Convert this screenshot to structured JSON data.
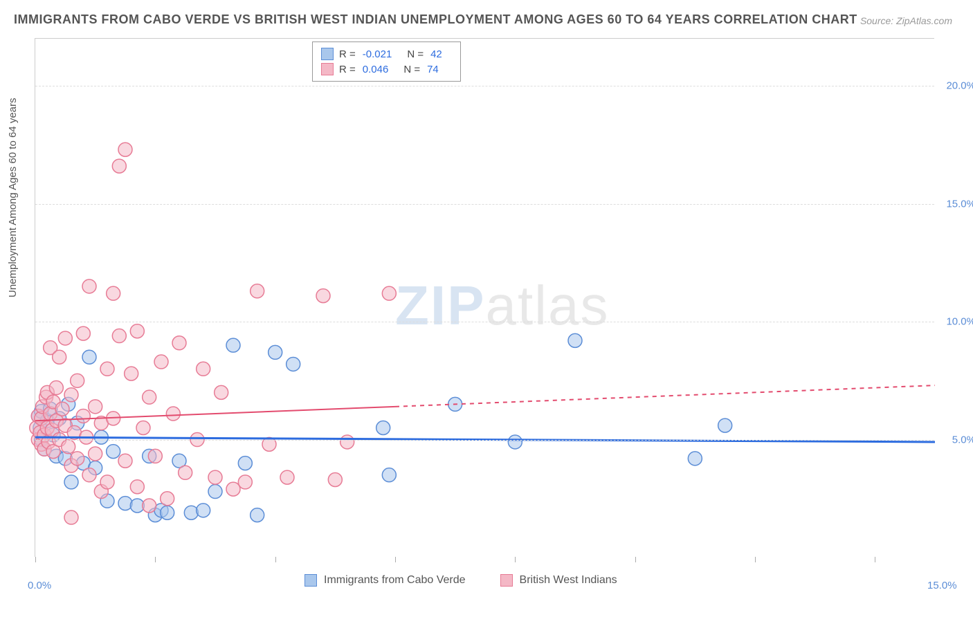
{
  "title": "IMMIGRANTS FROM CABO VERDE VS BRITISH WEST INDIAN UNEMPLOYMENT AMONG AGES 60 TO 64 YEARS CORRELATION CHART",
  "source": "Source: ZipAtlas.com",
  "watermark_a": "ZIP",
  "watermark_b": "atlas",
  "chart": {
    "type": "scatter",
    "ylabel": "Unemployment Among Ages 60 to 64 years",
    "background_color": "#ffffff",
    "grid_color": "#dddddd",
    "xlim": [
      0,
      15
    ],
    "ylim": [
      0,
      22
    ],
    "xticks": [
      0,
      2,
      4,
      6,
      8,
      10,
      12,
      14
    ],
    "xtick_labels": [
      "0.0%",
      "",
      "",
      "",
      "",
      "",
      "",
      "15.0%"
    ],
    "yticks": [
      5,
      10,
      15,
      20
    ],
    "ytick_labels": [
      "5.0%",
      "10.0%",
      "15.0%",
      "20.0%"
    ],
    "marker_radius": 10,
    "marker_opacity": 0.55,
    "series": [
      {
        "name": "Immigrants from Cabo Verde",
        "R": "-0.021",
        "N": "42",
        "color_fill": "#a9c7ec",
        "color_stroke": "#5b8dd6",
        "trend": {
          "color": "#2d6cdf",
          "width": 3,
          "y_start": 5.1,
          "y_end": 4.9,
          "solid_to_x": 15
        },
        "points": [
          [
            0.05,
            6.0
          ],
          [
            0.08,
            5.5
          ],
          [
            0.1,
            5.0
          ],
          [
            0.1,
            6.2
          ],
          [
            0.15,
            4.6
          ],
          [
            0.2,
            5.8
          ],
          [
            0.25,
            6.3
          ],
          [
            0.3,
            5.2
          ],
          [
            0.35,
            4.3
          ],
          [
            0.4,
            5.9
          ],
          [
            0.5,
            4.2
          ],
          [
            0.55,
            6.5
          ],
          [
            0.6,
            3.2
          ],
          [
            0.7,
            5.7
          ],
          [
            0.8,
            4.0
          ],
          [
            0.9,
            8.5
          ],
          [
            1.0,
            3.8
          ],
          [
            1.1,
            5.1
          ],
          [
            1.2,
            2.4
          ],
          [
            1.3,
            4.5
          ],
          [
            1.5,
            2.3
          ],
          [
            1.7,
            2.2
          ],
          [
            1.9,
            4.3
          ],
          [
            2.0,
            1.8
          ],
          [
            2.1,
            2.0
          ],
          [
            2.2,
            1.9
          ],
          [
            2.4,
            4.1
          ],
          [
            2.6,
            1.9
          ],
          [
            2.8,
            2.0
          ],
          [
            3.0,
            2.8
          ],
          [
            3.3,
            9.0
          ],
          [
            3.5,
            4.0
          ],
          [
            3.7,
            1.8
          ],
          [
            4.0,
            8.7
          ],
          [
            4.3,
            8.2
          ],
          [
            5.8,
            5.5
          ],
          [
            5.9,
            3.5
          ],
          [
            7.0,
            6.5
          ],
          [
            8.0,
            4.9
          ],
          [
            9.0,
            9.2
          ],
          [
            11.0,
            4.2
          ],
          [
            11.5,
            5.6
          ]
        ]
      },
      {
        "name": "British West Indians",
        "R": "0.046",
        "N": "74",
        "color_fill": "#f4b8c6",
        "color_stroke": "#e77b95",
        "trend": {
          "color": "#e34b6e",
          "width": 2,
          "y_start": 5.8,
          "y_end": 7.3,
          "solid_to_x": 6
        },
        "points": [
          [
            0.02,
            5.5
          ],
          [
            0.05,
            5.0
          ],
          [
            0.05,
            6.0
          ],
          [
            0.08,
            5.3
          ],
          [
            0.1,
            4.8
          ],
          [
            0.1,
            5.9
          ],
          [
            0.12,
            6.4
          ],
          [
            0.15,
            5.2
          ],
          [
            0.15,
            4.6
          ],
          [
            0.18,
            6.8
          ],
          [
            0.2,
            5.5
          ],
          [
            0.2,
            7.0
          ],
          [
            0.22,
            4.9
          ],
          [
            0.25,
            6.1
          ],
          [
            0.25,
            8.9
          ],
          [
            0.28,
            5.4
          ],
          [
            0.3,
            4.5
          ],
          [
            0.3,
            6.6
          ],
          [
            0.35,
            5.8
          ],
          [
            0.35,
            7.2
          ],
          [
            0.4,
            5.0
          ],
          [
            0.4,
            8.5
          ],
          [
            0.45,
            6.3
          ],
          [
            0.5,
            5.6
          ],
          [
            0.5,
            9.3
          ],
          [
            0.55,
            4.7
          ],
          [
            0.6,
            6.9
          ],
          [
            0.6,
            3.9
          ],
          [
            0.65,
            5.3
          ],
          [
            0.7,
            7.5
          ],
          [
            0.7,
            4.2
          ],
          [
            0.8,
            6.0
          ],
          [
            0.8,
            9.5
          ],
          [
            0.85,
            5.1
          ],
          [
            0.9,
            3.5
          ],
          [
            0.9,
            11.5
          ],
          [
            1.0,
            6.4
          ],
          [
            1.0,
            4.4
          ],
          [
            1.1,
            5.7
          ],
          [
            1.1,
            2.8
          ],
          [
            1.2,
            8.0
          ],
          [
            1.2,
            3.2
          ],
          [
            1.3,
            11.2
          ],
          [
            1.3,
            5.9
          ],
          [
            1.4,
            9.4
          ],
          [
            1.4,
            16.6
          ],
          [
            1.5,
            4.1
          ],
          [
            1.5,
            17.3
          ],
          [
            1.6,
            7.8
          ],
          [
            1.7,
            3.0
          ],
          [
            1.7,
            9.6
          ],
          [
            1.8,
            5.5
          ],
          [
            1.9,
            2.2
          ],
          [
            1.9,
            6.8
          ],
          [
            2.0,
            4.3
          ],
          [
            2.1,
            8.3
          ],
          [
            2.2,
            2.5
          ],
          [
            2.3,
            6.1
          ],
          [
            2.4,
            9.1
          ],
          [
            2.5,
            3.6
          ],
          [
            2.7,
            5.0
          ],
          [
            2.8,
            8.0
          ],
          [
            3.0,
            3.4
          ],
          [
            3.1,
            7.0
          ],
          [
            3.3,
            2.9
          ],
          [
            3.5,
            3.2
          ],
          [
            3.7,
            11.3
          ],
          [
            3.9,
            4.8
          ],
          [
            4.2,
            3.4
          ],
          [
            4.8,
            11.1
          ],
          [
            5.0,
            3.3
          ],
          [
            5.2,
            4.9
          ],
          [
            5.9,
            11.2
          ],
          [
            0.6,
            1.7
          ]
        ]
      }
    ]
  },
  "legend_bottom": {
    "items": [
      "Immigrants from Cabo Verde",
      "British West Indians"
    ]
  }
}
